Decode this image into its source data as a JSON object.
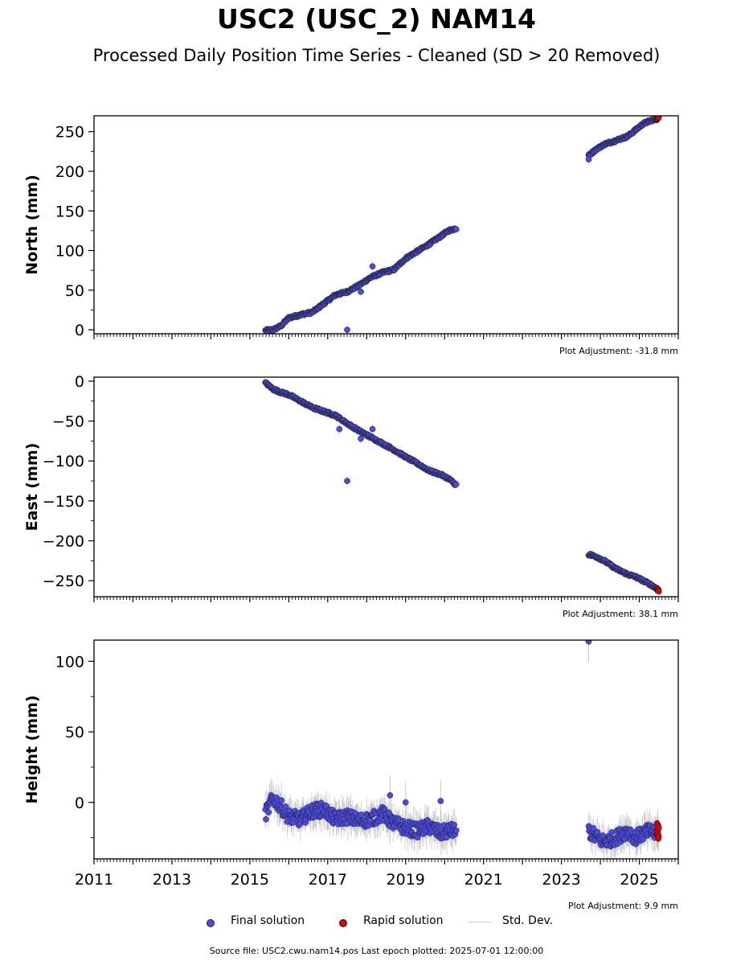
{
  "title": "USC2 (USC_2) NAM14",
  "subtitle": "Processed Daily Position Time Series - Cleaned (SD > 20 Removed)",
  "colors": {
    "final": "#4a4ae8",
    "rapid": "#e00000",
    "stddev": "#c8c8c8",
    "edge": "#222222"
  },
  "legend": {
    "final_label": "Final solution",
    "rapid_label": "Rapid solution",
    "std_label": "Std. Dev."
  },
  "source_text": "Source file: USC2.cwu.nam14.pos  Last epoch plotted: 2025-07-01 12:00:00",
  "chart_data": [
    {
      "type": "scatter",
      "ylabel": "North (mm)",
      "adjustment": "Plot Adjustment: -31.8 mm",
      "xlim": [
        2011.0,
        2026.0
      ],
      "ylim": [
        -5,
        270
      ],
      "yticks": [
        0,
        50,
        100,
        150,
        200,
        250
      ],
      "series": [
        {
          "name": "Final solution",
          "segments": [
            {
              "x": [
                2015.4,
                2015.6,
                2015.8,
                2016.0,
                2016.3,
                2016.6,
                2016.9,
                2017.2,
                2017.5,
                2017.8,
                2018.1,
                2018.4,
                2018.7,
                2019.0,
                2019.3,
                2019.6,
                2019.9,
                2020.1,
                2020.3
              ],
              "y": [
                -1,
                0,
                5,
                15,
                19,
                22,
                33,
                44,
                48,
                56,
                66,
                72,
                76,
                90,
                99,
                108,
                118,
                125,
                128
              ]
            },
            {
              "x": [
                2023.7,
                2023.9,
                2024.1,
                2024.4,
                2024.7,
                2024.9,
                2025.1,
                2025.3,
                2025.45
              ],
              "y": [
                220,
                228,
                234,
                239,
                244,
                252,
                260,
                264,
                266
              ]
            }
          ],
          "outliers": [
            {
              "x": 2017.5,
              "y": 0
            },
            {
              "x": 2017.85,
              "y": 48
            },
            {
              "x": 2018.15,
              "y": 80
            },
            {
              "x": 2023.7,
              "y": 215
            }
          ]
        },
        {
          "name": "Rapid solution",
          "segments": [
            {
              "x": [
                2025.45,
                2025.5
              ],
              "y": [
                266,
                268
              ]
            }
          ],
          "outliers": []
        }
      ]
    },
    {
      "type": "scatter",
      "ylabel": "East (mm)",
      "adjustment": "Plot Adjustment: 38.1 mm",
      "xlim": [
        2011.0,
        2026.0
      ],
      "ylim": [
        -270,
        5
      ],
      "yticks": [
        0,
        -50,
        -100,
        -150,
        -200,
        -250
      ],
      "series": [
        {
          "name": "Final solution",
          "segments": [
            {
              "x": [
                2015.4,
                2015.6,
                2015.8,
                2016.0,
                2016.3,
                2016.6,
                2016.9,
                2017.2,
                2017.5,
                2017.8,
                2018.1,
                2018.4,
                2018.7,
                2019.0,
                2019.3,
                2019.6,
                2019.9,
                2020.1,
                2020.3
              ],
              "y": [
                -2,
                -10,
                -14,
                -17,
                -25,
                -33,
                -38,
                -43,
                -53,
                -62,
                -70,
                -78,
                -86,
                -95,
                -103,
                -112,
                -117,
                -122,
                -130
              ]
            },
            {
              "x": [
                2023.7,
                2023.9,
                2024.1,
                2024.4,
                2024.7,
                2024.9,
                2025.1,
                2025.3,
                2025.45
              ],
              "y": [
                -217,
                -220,
                -225,
                -235,
                -242,
                -245,
                -250,
                -255,
                -260
              ]
            }
          ],
          "outliers": [
            {
              "x": 2017.5,
              "y": -125
            },
            {
              "x": 2017.3,
              "y": -60
            },
            {
              "x": 2018.15,
              "y": -60
            },
            {
              "x": 2017.85,
              "y": -72
            }
          ]
        },
        {
          "name": "Rapid solution",
          "segments": [
            {
              "x": [
                2025.45,
                2025.5
              ],
              "y": [
                -260,
                -263
              ]
            }
          ],
          "outliers": []
        }
      ]
    },
    {
      "type": "scatter",
      "ylabel": "Height (mm)",
      "adjustment": "Plot Adjustment: 9.9 mm",
      "xlim": [
        2011.0,
        2026.0
      ],
      "ylim": [
        -40,
        115
      ],
      "yticks": [
        0,
        50,
        100
      ],
      "xticks": [
        2011,
        2013,
        2015,
        2017,
        2019,
        2021,
        2023,
        2025
      ],
      "series": [
        {
          "name": "Final solution",
          "segments": [
            {
              "x": [
                2015.4,
                2015.6,
                2015.8,
                2016.0,
                2016.3,
                2016.6,
                2016.9,
                2017.2,
                2017.5,
                2017.8,
                2018.1,
                2018.4,
                2018.7,
                2019.0,
                2019.3,
                2019.6,
                2019.9,
                2020.1,
                2020.3
              ],
              "y": [
                -8,
                3,
                -3,
                -10,
                -12,
                -6,
                -5,
                -12,
                -10,
                -13,
                -12,
                -8,
                -15,
                -18,
                -20,
                -17,
                -22,
                -20,
                -20
              ]
            },
            {
              "x": [
                2023.7,
                2023.9,
                2024.1,
                2024.4,
                2024.7,
                2024.9,
                2025.1,
                2025.3,
                2025.45
              ],
              "y": [
                -20,
                -25,
                -28,
                -25,
                -20,
                -25,
                -22,
                -20,
                -23
              ]
            }
          ],
          "outliers": [
            {
              "x": 2023.7,
              "y": 114
            },
            {
              "x": 2019.0,
              "y": 0
            },
            {
              "x": 2019.9,
              "y": 1
            },
            {
              "x": 2018.6,
              "y": 5
            }
          ]
        },
        {
          "name": "Rapid solution",
          "segments": [
            {
              "x": [
                2025.45,
                2025.5
              ],
              "y": [
                -18,
                -22
              ]
            }
          ],
          "outliers": []
        }
      ]
    }
  ]
}
